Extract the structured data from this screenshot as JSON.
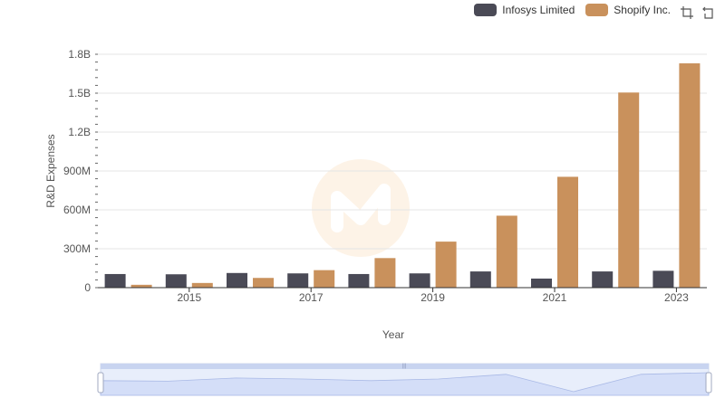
{
  "chart_data": {
    "type": "bar",
    "title": "",
    "xlabel": "Year",
    "ylabel": "R&D Expenses",
    "categories": [
      "2014",
      "2015",
      "2016",
      "2017",
      "2018",
      "2019",
      "2020",
      "2021",
      "2022",
      "2023"
    ],
    "x_tick_labels": [
      "2015",
      "2017",
      "2019",
      "2021",
      "2023"
    ],
    "y_tick_labels": [
      "0",
      "300M",
      "600M",
      "900M",
      "1.2B",
      "1.5B",
      "1.8B"
    ],
    "ylim": [
      0,
      1800000000
    ],
    "series": [
      {
        "name": "Infosys Limited",
        "color": "#4a4a56",
        "values": [
          105000000,
          103000000,
          113000000,
          110000000,
          105000000,
          110000000,
          125000000,
          70000000,
          125000000,
          130000000
        ]
      },
      {
        "name": "Shopify Inc.",
        "color": "#c9915c",
        "values": [
          22000000,
          36000000,
          75000000,
          135000000,
          228000000,
          355000000,
          555000000,
          855000000,
          1505000000,
          1730000000
        ]
      }
    ],
    "legend_position": "top-right",
    "grid": true
  },
  "toolbox": {
    "zoom_icon": "zoom-select-icon",
    "restore_icon": "restore-icon"
  }
}
